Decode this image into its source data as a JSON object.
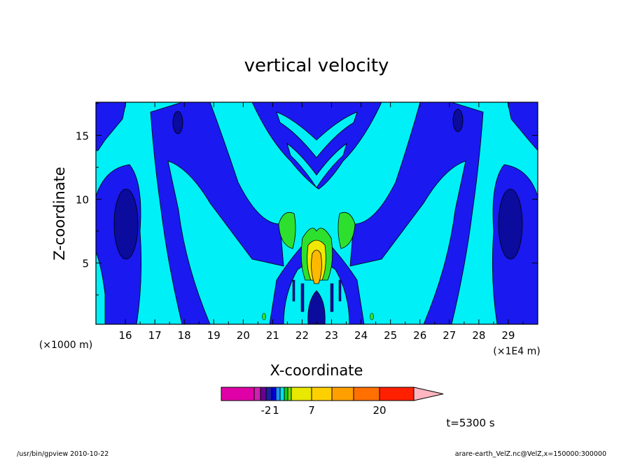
{
  "chart_data": {
    "type": "heatmap",
    "title": "vertical velocity",
    "xlabel": "X-coordinate",
    "ylabel": "Z-coordinate",
    "x_unit_left": "(×1000 m)",
    "x_unit_right": "(×1E4 m)",
    "x_ticks": [
      "16",
      "17",
      "18",
      "19",
      "20",
      "21",
      "22",
      "23",
      "24",
      "25",
      "26",
      "27",
      "28",
      "29"
    ],
    "y_ticks": [
      "5",
      "10",
      "15"
    ],
    "xlim": [
      15.0,
      30.0
    ],
    "ylim": [
      0.2,
      17.6
    ],
    "time_label": "t=5300 s",
    "colorbar": {
      "tick_labels": [
        "-2",
        "1",
        "7",
        "20"
      ],
      "colors": [
        "#e000a8",
        "#cc22b0",
        "#6a0090",
        "#1e1ea0",
        "#0000e0",
        "#1e90ff",
        "#00e0f0",
        "#10d010",
        "#70e000",
        "#e8e800",
        "#ffd000",
        "#ffa000",
        "#ff7000",
        "#ff2000",
        "#ff8080",
        "#ffb6c1"
      ]
    },
    "colors": {
      "dark_blue": "#0b0b9e",
      "blue": "#1919f0",
      "cyan": "#00f0f8",
      "green": "#2ee02e",
      "yellow": "#f0e800",
      "orange": "#ffb800"
    }
  },
  "footer": {
    "left": "/usr/bin/gpview  2010-10-22",
    "right": "arare-earth_VelZ.nc@VelZ,x=150000:300000"
  }
}
